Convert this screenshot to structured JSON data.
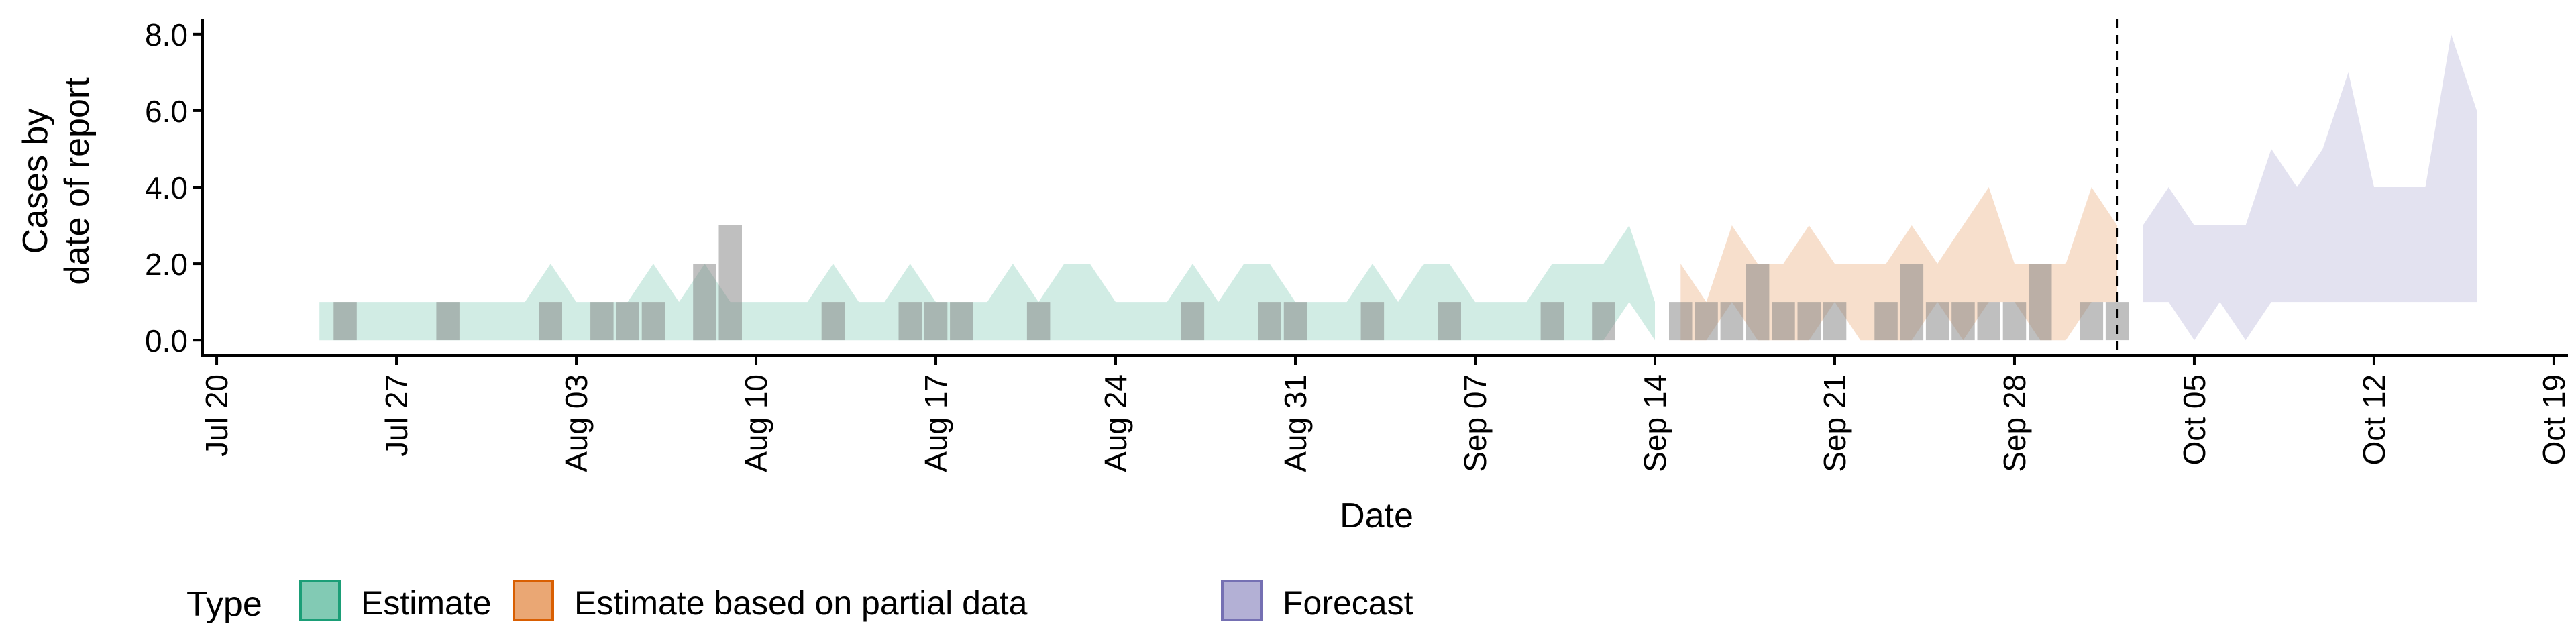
{
  "chart_data": {
    "type": "area",
    "xlabel": "Date",
    "ylabel": [
      "Cases by",
      "date of report"
    ],
    "x_axis": {
      "type": "date",
      "range": [
        "2020-07-20",
        "2020-10-19"
      ],
      "ticks": [
        {
          "date": "2020-07-20",
          "label": "Jul 20"
        },
        {
          "date": "2020-07-27",
          "label": "Jul 27"
        },
        {
          "date": "2020-08-03",
          "label": "Aug 03"
        },
        {
          "date": "2020-08-10",
          "label": "Aug 10"
        },
        {
          "date": "2020-08-17",
          "label": "Aug 17"
        },
        {
          "date": "2020-08-24",
          "label": "Aug 24"
        },
        {
          "date": "2020-08-31",
          "label": "Aug 31"
        },
        {
          "date": "2020-09-07",
          "label": "Sep 07"
        },
        {
          "date": "2020-09-14",
          "label": "Sep 14"
        },
        {
          "date": "2020-09-21",
          "label": "Sep 21"
        },
        {
          "date": "2020-09-28",
          "label": "Sep 28"
        },
        {
          "date": "2020-10-05",
          "label": "Oct 05"
        },
        {
          "date": "2020-10-12",
          "label": "Oct 12"
        },
        {
          "date": "2020-10-19",
          "label": "Oct 19"
        }
      ]
    },
    "y_axis": {
      "range": [
        -0.4,
        8.4
      ],
      "ticks": [
        {
          "value": 0,
          "label": "0.0"
        },
        {
          "value": 2,
          "label": "2.0"
        },
        {
          "value": 4,
          "label": "4.0"
        },
        {
          "value": 6,
          "label": "6.0"
        },
        {
          "value": 8,
          "label": "8.0"
        }
      ]
    },
    "grid": false,
    "vline": {
      "date": "2020-10-02",
      "style": "dashed"
    },
    "series": [
      {
        "name": "Estimate",
        "color": "#1b9e77",
        "dates": [
          "2020-07-24",
          "2020-07-25",
          "2020-07-26",
          "2020-07-27",
          "2020-07-28",
          "2020-07-29",
          "2020-07-30",
          "2020-07-31",
          "2020-08-01",
          "2020-08-02",
          "2020-08-03",
          "2020-08-04",
          "2020-08-05",
          "2020-08-06",
          "2020-08-07",
          "2020-08-08",
          "2020-08-09",
          "2020-08-10",
          "2020-08-11",
          "2020-08-12",
          "2020-08-13",
          "2020-08-14",
          "2020-08-15",
          "2020-08-16",
          "2020-08-17",
          "2020-08-18",
          "2020-08-19",
          "2020-08-20",
          "2020-08-21",
          "2020-08-22",
          "2020-08-23",
          "2020-08-24",
          "2020-08-25",
          "2020-08-26",
          "2020-08-27",
          "2020-08-28",
          "2020-08-29",
          "2020-08-30",
          "2020-08-31",
          "2020-09-01",
          "2020-09-02",
          "2020-09-03",
          "2020-09-04",
          "2020-09-05",
          "2020-09-06",
          "2020-09-07",
          "2020-09-08",
          "2020-09-09",
          "2020-09-10",
          "2020-09-11",
          "2020-09-12",
          "2020-09-13",
          "2020-09-14"
        ],
        "lower": [
          0,
          0,
          0,
          0,
          0,
          0,
          0,
          0,
          0,
          0,
          0,
          0,
          0,
          0,
          0,
          0,
          0,
          0,
          0,
          0,
          0,
          0,
          0,
          0,
          0,
          0,
          0,
          0,
          0,
          0,
          0,
          0,
          0,
          0,
          0,
          0,
          0,
          0,
          0,
          0,
          0,
          0,
          0,
          0,
          0,
          0,
          0,
          0,
          0,
          0,
          0,
          1,
          0
        ],
        "upper": [
          1,
          1,
          1,
          1,
          1,
          1,
          1,
          1,
          1,
          2,
          1,
          1,
          1,
          2,
          1,
          2,
          1,
          1,
          1,
          1,
          2,
          1,
          1,
          2,
          1,
          1,
          1,
          2,
          1,
          2,
          2,
          1,
          1,
          1,
          2,
          1,
          2,
          2,
          1,
          1,
          1,
          2,
          1,
          2,
          2,
          1,
          1,
          1,
          2,
          2,
          2,
          3,
          1
        ]
      },
      {
        "name": "Estimate based on partial data",
        "color": "#d95f02",
        "dates": [
          "2020-09-15",
          "2020-09-16",
          "2020-09-17",
          "2020-09-18",
          "2020-09-19",
          "2020-09-20",
          "2020-09-21",
          "2020-09-22",
          "2020-09-23",
          "2020-09-24",
          "2020-09-25",
          "2020-09-26",
          "2020-09-27",
          "2020-09-28",
          "2020-09-29",
          "2020-09-30",
          "2020-10-01",
          "2020-10-02"
        ],
        "lower": [
          0,
          0,
          1,
          0,
          0,
          0,
          1,
          0,
          0,
          0,
          1,
          0,
          1,
          1,
          0,
          0,
          1,
          1
        ],
        "upper": [
          2,
          1,
          3,
          2,
          2,
          3,
          2,
          2,
          2,
          3,
          2,
          3,
          4,
          2,
          2,
          2,
          4,
          3
        ]
      },
      {
        "name": "Forecast",
        "color": "#7570b3",
        "dates": [
          "2020-10-03",
          "2020-10-04",
          "2020-10-05",
          "2020-10-06",
          "2020-10-07",
          "2020-10-08",
          "2020-10-09",
          "2020-10-10",
          "2020-10-11",
          "2020-10-12",
          "2020-10-13",
          "2020-10-14",
          "2020-10-15",
          "2020-10-16"
        ],
        "lower": [
          1,
          1,
          0,
          1,
          0,
          1,
          1,
          1,
          1,
          1,
          1,
          1,
          1,
          1
        ],
        "upper": [
          3,
          4,
          3,
          3,
          3,
          5,
          4,
          5,
          7,
          4,
          4,
          4,
          8,
          6
        ]
      }
    ],
    "observed": {
      "color": "#808080",
      "dates": [
        "2020-07-25",
        "2020-07-29",
        "2020-08-02",
        "2020-08-04",
        "2020-08-05",
        "2020-08-06",
        "2020-08-08",
        "2020-08-09",
        "2020-08-13",
        "2020-08-16",
        "2020-08-17",
        "2020-08-18",
        "2020-08-21",
        "2020-08-27",
        "2020-08-30",
        "2020-08-31",
        "2020-09-03",
        "2020-09-06",
        "2020-09-10",
        "2020-09-12",
        "2020-09-15",
        "2020-09-16",
        "2020-09-17",
        "2020-09-18",
        "2020-09-19",
        "2020-09-20",
        "2020-09-21",
        "2020-09-23",
        "2020-09-24",
        "2020-09-25",
        "2020-09-26",
        "2020-09-27",
        "2020-09-28",
        "2020-09-29",
        "2020-10-01",
        "2020-10-02"
      ],
      "values": [
        1,
        1,
        1,
        1,
        1,
        1,
        2,
        3,
        1,
        1,
        1,
        1,
        1,
        1,
        1,
        1,
        1,
        1,
        1,
        1,
        1,
        1,
        1,
        2,
        1,
        1,
        1,
        1,
        2,
        1,
        1,
        1,
        1,
        2,
        1,
        1
      ]
    },
    "legend": {
      "title": "Type",
      "position": "bottom",
      "items": [
        "Estimate",
        "Estimate based on partial data",
        "Forecast"
      ]
    }
  }
}
